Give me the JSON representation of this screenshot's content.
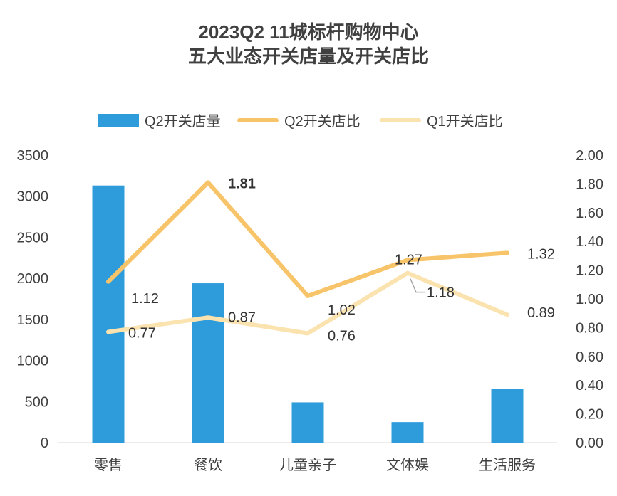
{
  "title_line1": "2023Q2  11城标杆购物中心",
  "title_line2": "五大业态开关店量及开关店比",
  "legend": {
    "bar": "Q2开关店量",
    "line_q2": "Q2开关店比",
    "line_q1": "Q1开关店比"
  },
  "colors": {
    "bar": "#2E9CDB",
    "line_q2": "#F8C46A",
    "line_q1": "#FBE3B0"
  },
  "chart_data": {
    "type": "bar",
    "categories": [
      "零售",
      "餐饮",
      "儿童亲子",
      "文体娱",
      "生活服务"
    ],
    "series": [
      {
        "name": "Q2开关店量",
        "type": "bar",
        "axis": "left",
        "values": [
          3130,
          1940,
          490,
          250,
          650
        ]
      },
      {
        "name": "Q2开关店比",
        "type": "line",
        "axis": "right",
        "values": [
          1.12,
          1.81,
          1.02,
          1.27,
          1.32
        ],
        "labels": [
          "1.12",
          "1.81",
          "1.02",
          "1.27",
          "1.32"
        ]
      },
      {
        "name": "Q1开关店比",
        "type": "line",
        "axis": "right",
        "values": [
          0.77,
          0.87,
          0.76,
          1.18,
          0.89
        ],
        "labels": [
          "0.77",
          "0.87",
          "0.76",
          "1.18",
          "0.89"
        ]
      }
    ],
    "y_left": {
      "min": 0,
      "max": 3500,
      "ticks": [
        "0",
        "500",
        "1000",
        "1500",
        "2000",
        "2500",
        "3000",
        "3500"
      ]
    },
    "y_right": {
      "min": 0,
      "max": 2,
      "ticks": [
        "0.00",
        "0.20",
        "0.40",
        "0.60",
        "0.80",
        "1.00",
        "1.20",
        "1.40",
        "1.60",
        "1.80",
        "2.00"
      ]
    },
    "legend_position": "top",
    "grid": false
  }
}
